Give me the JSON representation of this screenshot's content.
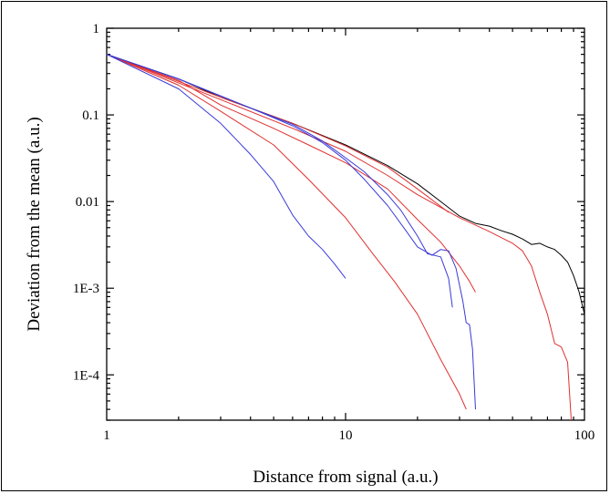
{
  "chart_data": {
    "type": "line",
    "xscale": "log",
    "yscale": "log",
    "xlim": [
      1,
      100
    ],
    "ylim": [
      3e-05,
      1
    ],
    "xlabel": "Distance from signal (a.u.)",
    "ylabel": "Deviation from the mean (a.u.)",
    "x_ticks": [
      {
        "value": 1,
        "label": "1"
      },
      {
        "value": 10,
        "label": "10"
      },
      {
        "value": 100,
        "label": "100"
      }
    ],
    "y_ticks": [
      {
        "value": 1,
        "label": "1"
      },
      {
        "value": 0.1,
        "label": "0.1"
      },
      {
        "value": 0.01,
        "label": "0.01"
      },
      {
        "value": 0.001,
        "label": "1E-3"
      },
      {
        "value": 0.0001,
        "label": "1E-4"
      }
    ],
    "grid": false,
    "legend": false,
    "series": [
      {
        "color": "#000000",
        "points": [
          [
            1,
            0.5
          ],
          [
            2,
            0.26
          ],
          [
            3,
            0.16
          ],
          [
            6,
            0.08
          ],
          [
            10,
            0.045
          ],
          [
            15,
            0.026
          ],
          [
            20,
            0.016
          ],
          [
            25,
            0.01
          ],
          [
            30,
            0.0068
          ],
          [
            35,
            0.0056
          ],
          [
            40,
            0.0052
          ],
          [
            45,
            0.0046
          ],
          [
            50,
            0.0042
          ],
          [
            55,
            0.0037
          ],
          [
            60,
            0.0032
          ],
          [
            65,
            0.0033
          ],
          [
            70,
            0.003
          ],
          [
            75,
            0.0028
          ],
          [
            80,
            0.0024
          ],
          [
            85,
            0.002
          ],
          [
            90,
            0.0014
          ],
          [
            95,
            0.0009
          ],
          [
            100,
            0.0005
          ]
        ]
      },
      {
        "color": "#e03030",
        "points": [
          [
            1,
            0.5
          ],
          [
            3,
            0.16
          ],
          [
            6,
            0.08
          ],
          [
            10,
            0.044
          ],
          [
            15,
            0.025
          ],
          [
            20,
            0.014
          ],
          [
            27,
            0.0075
          ]
        ]
      },
      {
        "color": "#e03030",
        "points": [
          [
            1,
            0.5
          ],
          [
            3,
            0.15
          ],
          [
            6,
            0.07
          ],
          [
            10,
            0.038
          ],
          [
            15,
            0.02
          ],
          [
            20,
            0.012
          ],
          [
            30,
            0.0065
          ],
          [
            40,
            0.0045
          ],
          [
            50,
            0.0033
          ],
          [
            55,
            0.0027
          ],
          [
            60,
            0.0018
          ],
          [
            65,
            0.0009
          ],
          [
            70,
            0.0005
          ],
          [
            75,
            0.00023
          ],
          [
            80,
            0.00021
          ],
          [
            85,
            0.00014
          ],
          [
            88,
            3e-05
          ]
        ]
      },
      {
        "color": "#e03030",
        "points": [
          [
            1,
            0.5
          ],
          [
            2,
            0.25
          ],
          [
            3,
            0.13
          ],
          [
            5,
            0.07
          ],
          [
            7,
            0.045
          ],
          [
            10,
            0.028
          ],
          [
            15,
            0.014
          ],
          [
            20,
            0.0062
          ],
          [
            25,
            0.0034
          ],
          [
            30,
            0.0018
          ],
          [
            33,
            0.0012
          ],
          [
            35,
            0.0009
          ]
        ]
      },
      {
        "color": "#e03030",
        "points": [
          [
            1,
            0.5
          ],
          [
            2,
            0.22
          ],
          [
            3,
            0.11
          ],
          [
            5,
            0.045
          ],
          [
            7,
            0.018
          ],
          [
            10,
            0.0065
          ],
          [
            13,
            0.0025
          ],
          [
            16,
            0.0012
          ],
          [
            20,
            0.0005
          ],
          [
            25,
            0.00015
          ],
          [
            30,
            6e-05
          ],
          [
            32,
            4e-05
          ]
        ]
      },
      {
        "color": "#3a3ad8",
        "points": [
          [
            1,
            0.5
          ],
          [
            2,
            0.26
          ],
          [
            4,
            0.12
          ],
          [
            6,
            0.078
          ],
          [
            8,
            0.05
          ],
          [
            10,
            0.032
          ],
          [
            12,
            0.022
          ],
          [
            15,
            0.012
          ],
          [
            17,
            0.008
          ],
          [
            20,
            0.004
          ],
          [
            22,
            0.0025
          ],
          [
            25,
            0.0023
          ],
          [
            27,
            0.0013
          ],
          [
            28,
            0.0006
          ]
        ]
      },
      {
        "color": "#3a3ad8",
        "points": [
          [
            1,
            0.5
          ],
          [
            2,
            0.26
          ],
          [
            4,
            0.12
          ],
          [
            6,
            0.075
          ],
          [
            8,
            0.048
          ],
          [
            10,
            0.03
          ],
          [
            12,
            0.018
          ],
          [
            15,
            0.009
          ],
          [
            18,
            0.0045
          ],
          [
            20,
            0.003
          ],
          [
            23,
            0.0024
          ],
          [
            25,
            0.0028
          ],
          [
            27,
            0.0027
          ],
          [
            29,
            0.0017
          ],
          [
            31,
            0.0007
          ],
          [
            32,
            0.0004
          ],
          [
            33,
            0.00038
          ],
          [
            34,
            0.0002
          ],
          [
            35,
            4e-05
          ]
        ]
      },
      {
        "color": "#3a3ad8",
        "points": [
          [
            1,
            0.5
          ],
          [
            2,
            0.2
          ],
          [
            3,
            0.08
          ],
          [
            4,
            0.035
          ],
          [
            5,
            0.017
          ],
          [
            6,
            0.007
          ],
          [
            7,
            0.004
          ],
          [
            8,
            0.0028
          ],
          [
            9,
            0.0019
          ],
          [
            10,
            0.0013
          ]
        ]
      }
    ]
  }
}
